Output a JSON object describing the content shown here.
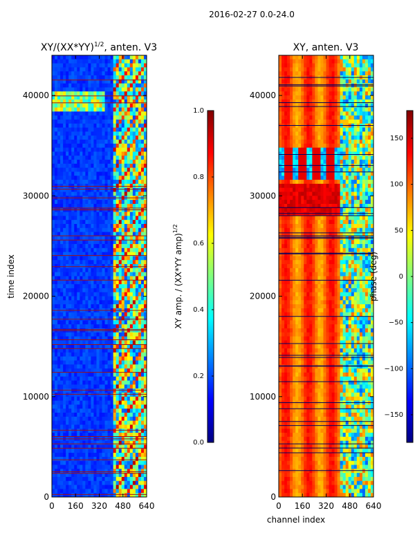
{
  "figure": {
    "suptitle": "2016-02-27 0.0-24.0",
    "colormap": [
      "#000080",
      "#0000ff",
      "#0080ff",
      "#00ffff",
      "#80ff80",
      "#ffff00",
      "#ff8000",
      "#ff0000",
      "#800000"
    ]
  },
  "chart_data": [
    {
      "type": "heatmap",
      "title": "XY/(XX*YY)^1/2, anten. V3",
      "title_main": "XY/(XX*YY)",
      "title_exp": "1/2",
      "title_tail": ", anten. V3",
      "xlabel": "",
      "ylabel": "time index",
      "xlim": [
        0,
        640
      ],
      "ylim": [
        0,
        44000
      ],
      "xticks": [
        0,
        160,
        320,
        480,
        640
      ],
      "xtick_labels": [
        "0",
        "160",
        "320",
        "480",
        "640"
      ],
      "yticks": [
        0,
        10000,
        20000,
        30000,
        40000
      ],
      "ytick_labels": [
        "0",
        "10000",
        "20000",
        "30000",
        "40000"
      ],
      "colorbar": {
        "label": "XY amp. / (XX*YY amp)^1/2",
        "label_main": "XY amp. / (XX*YY amp)",
        "label_exp": "1/2",
        "range": [
          0.0,
          1.0
        ],
        "ticks": [
          0.0,
          0.2,
          0.4,
          0.6,
          0.8,
          1.0
        ],
        "tick_labels": [
          "0.0",
          "0.2",
          "0.4",
          "0.6",
          "0.8",
          "1.0"
        ]
      }
    },
    {
      "type": "heatmap",
      "title": "XY, anten. V3",
      "xlabel": "channel index",
      "ylabel": "",
      "xlim": [
        0,
        640
      ],
      "ylim": [
        0,
        44000
      ],
      "xticks": [
        0,
        160,
        320,
        480,
        640
      ],
      "xtick_labels": [
        "0",
        "160",
        "320",
        "480",
        "640"
      ],
      "yticks": [
        0,
        10000,
        20000,
        30000,
        40000
      ],
      "ytick_labels": [
        "0",
        "10000",
        "20000",
        "30000",
        "40000"
      ],
      "colorbar": {
        "label": "phase (deg)",
        "range": [
          -180,
          180
        ],
        "ticks": [
          -150,
          -100,
          -50,
          0,
          50,
          100,
          150
        ],
        "tick_labels": [
          "−150",
          "−100",
          "−50",
          "0",
          "50",
          "100",
          "150"
        ]
      }
    }
  ]
}
